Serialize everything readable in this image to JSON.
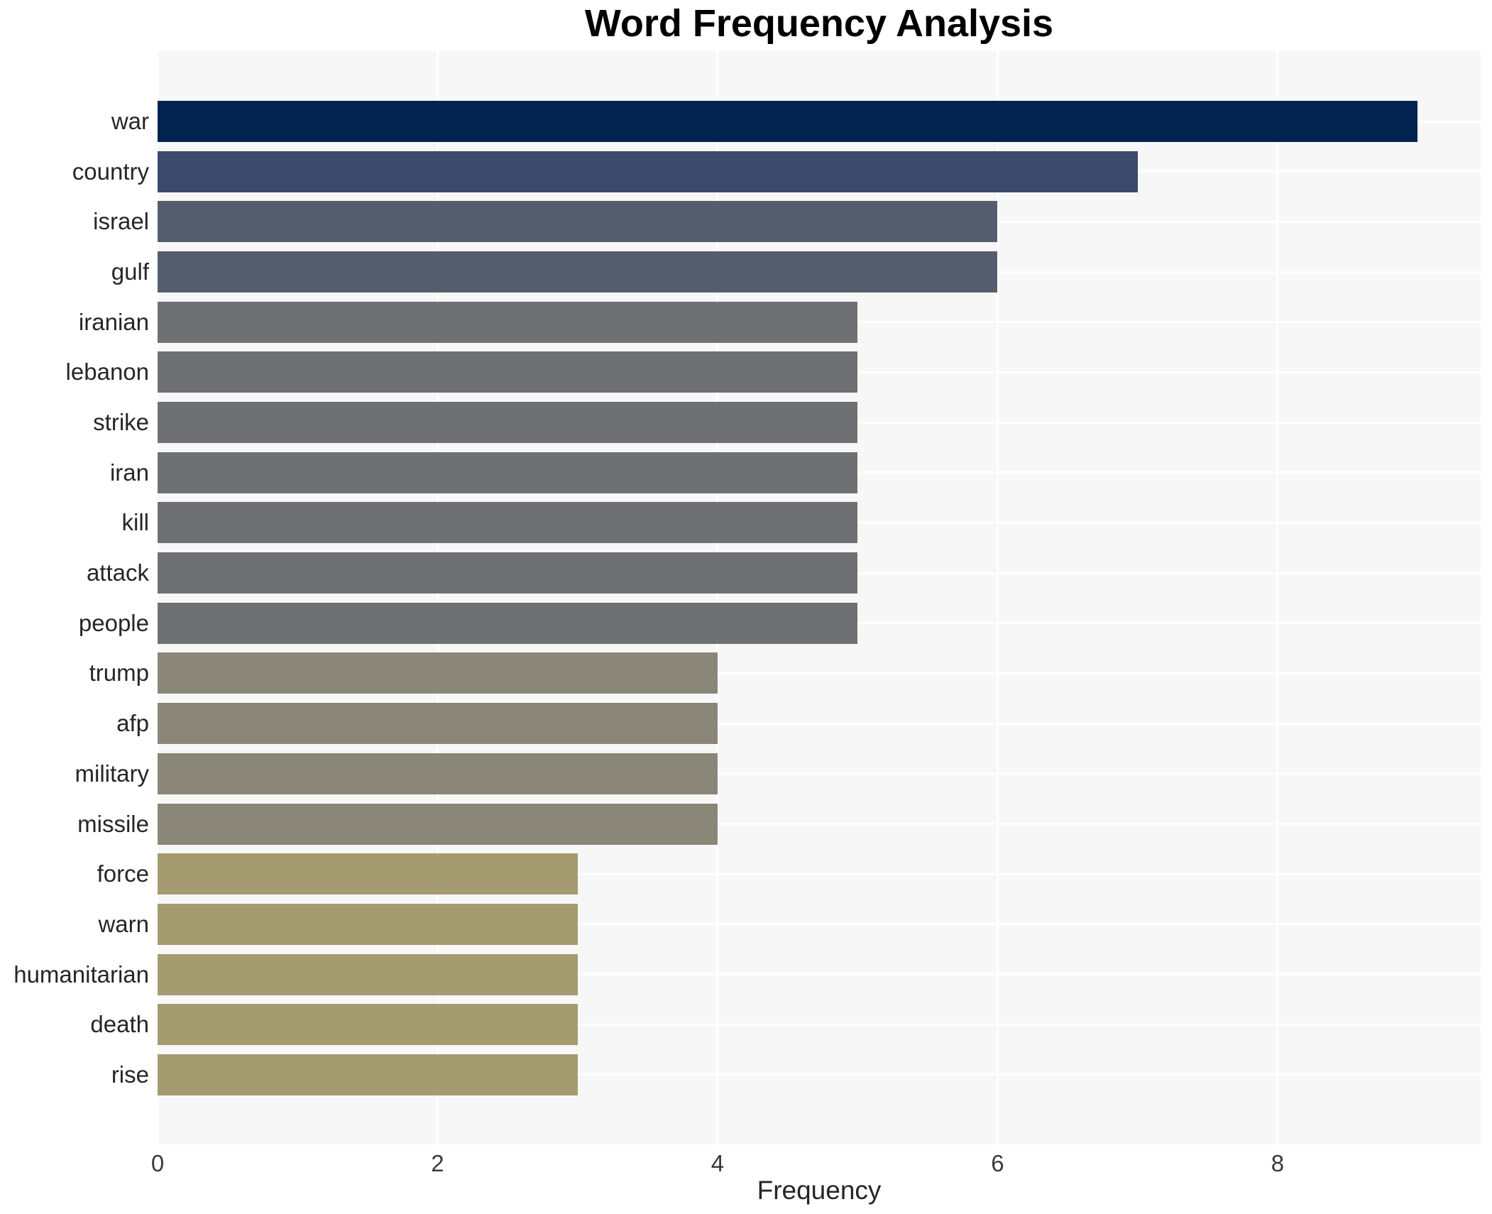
{
  "chart_data": {
    "type": "bar",
    "orientation": "horizontal",
    "title": "Word Frequency Analysis",
    "xlabel": "Frequency",
    "ylabel": "",
    "categories": [
      "war",
      "country",
      "israel",
      "gulf",
      "iranian",
      "lebanon",
      "strike",
      "iran",
      "kill",
      "attack",
      "people",
      "trump",
      "afp",
      "military",
      "missile",
      "force",
      "warn",
      "humanitarian",
      "death",
      "rise"
    ],
    "values": [
      9,
      7,
      6,
      6,
      5,
      5,
      5,
      5,
      5,
      5,
      5,
      4,
      4,
      4,
      4,
      3,
      3,
      3,
      3,
      3
    ],
    "xticks": [
      "0",
      "2",
      "4",
      "6",
      "8"
    ],
    "xtick_values": [
      0,
      2,
      4,
      6,
      8
    ],
    "xlim": [
      0,
      9.45
    ],
    "grid": true,
    "legend_position": "none",
    "bar_colors": [
      "#02224f",
      "#3b4a6d",
      "#565d6d",
      "#565d6d",
      "#6e7073",
      "#6e7073",
      "#6e7073",
      "#6e7073",
      "#6e7073",
      "#6e7073",
      "#6e7073",
      "#8a8778",
      "#8a8778",
      "#8a8778",
      "#8a8778",
      "#a59b70",
      "#a59b70",
      "#a59b70",
      "#a59b70",
      "#a59b70"
    ],
    "colors": {
      "plot_background": "#f7f7f8",
      "gridline": "#ffffff",
      "page_background": "#ffffff",
      "title_text": "#000000",
      "tick_text": "#262626"
    }
  }
}
